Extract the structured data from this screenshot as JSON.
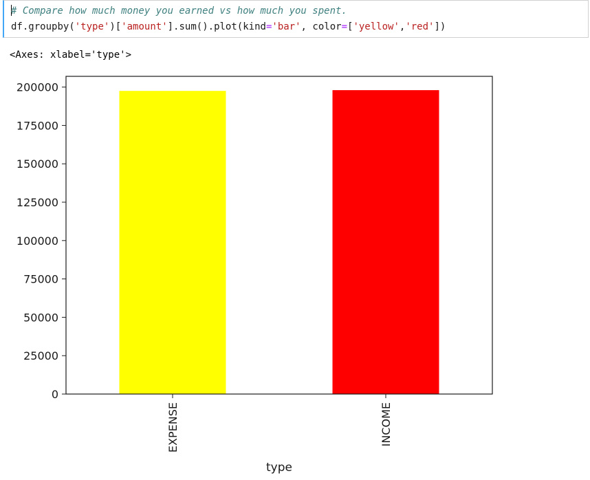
{
  "cell": {
    "comment": "# Compare how much money you earned vs how much you spent.",
    "code": {
      "df": "df",
      "dot1": ".",
      "groupby": "groupby",
      "p1": "(",
      "s_type": "'type'",
      "p2": ")[",
      "s_amount": "'amount'",
      "p3": "].",
      "sum": "sum",
      "p4": "().",
      "plot": "plot",
      "p5": "(",
      "kind": "kind",
      "eq1": "=",
      "s_bar": "'bar'",
      "comma": ", ",
      "color": "color",
      "eq2": "=",
      "lb": "[",
      "s_yellow": "'yellow'",
      "comma2": ",",
      "s_red": "'red'",
      "rb": "])"
    }
  },
  "output": {
    "repr": "<Axes: xlabel='type'>"
  },
  "chart_data": {
    "type": "bar",
    "categories": [
      "EXPENSE",
      "INCOME"
    ],
    "values": [
      197500,
      198000
    ],
    "bar_colors": [
      "#ffff00",
      "#ff0000"
    ],
    "xlabel": "type",
    "ylabel": "",
    "ylim": [
      0,
      207000
    ],
    "yticks": [
      0,
      25000,
      50000,
      75000,
      100000,
      125000,
      150000,
      175000,
      200000
    ],
    "ytick_labels": [
      "0",
      "25000",
      "50000",
      "75000",
      "100000",
      "125000",
      "150000",
      "175000",
      "200000"
    ],
    "grid": false,
    "legend": "none"
  }
}
